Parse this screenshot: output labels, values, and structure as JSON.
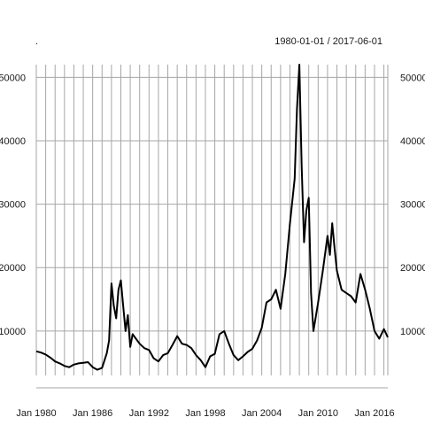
{
  "chart_data": {
    "type": "line",
    "title_left": ".",
    "title_right": "1980-01-01 / 2017-06-01",
    "x_range": [
      "1980-01-01",
      "2017-06-01"
    ],
    "ylim": [
      3000,
      52000
    ],
    "y_ticks": [
      10000,
      20000,
      30000,
      40000,
      50000
    ],
    "y_tick_labels_left": [
      "10000",
      "20000",
      "30000",
      "40000",
      "50000"
    ],
    "y_tick_labels_right": [
      "10000",
      "20000",
      "30000",
      "40000",
      "50000"
    ],
    "x_ticks": [
      "1980-01-01",
      "1986-01-01",
      "1992-01-01",
      "1998-01-01",
      "2004-01-01",
      "2010-01-01",
      "2016-01-01"
    ],
    "x_tick_labels": [
      "Jan 1980",
      "Jan 1986",
      "Jan 1992",
      "Jan 1998",
      "Jan 2004",
      "Jan 2010",
      "Jan 2016"
    ],
    "grid": true,
    "series": [
      {
        "color": "#000000",
        "x": [
          "1980-01-01",
          "1980-07-01",
          "1981-01-01",
          "1981-07-01",
          "1982-01-01",
          "1982-07-01",
          "1983-01-01",
          "1983-07-01",
          "1984-01-01",
          "1984-07-01",
          "1985-01-01",
          "1985-07-01",
          "1986-01-01",
          "1986-07-01",
          "1987-01-01",
          "1987-07-01",
          "1987-10-01",
          "1988-01-01",
          "1988-04-01",
          "1988-07-01",
          "1988-10-01",
          "1989-01-01",
          "1989-04-01",
          "1989-07-01",
          "1989-10-01",
          "1990-01-01",
          "1990-04-01",
          "1990-07-01",
          "1991-01-01",
          "1991-07-01",
          "1992-01-01",
          "1992-07-01",
          "1993-01-01",
          "1993-07-01",
          "1994-01-01",
          "1994-07-01",
          "1995-01-01",
          "1995-07-01",
          "1996-01-01",
          "1996-07-01",
          "1997-01-01",
          "1997-07-01",
          "1998-01-01",
          "1998-07-01",
          "1999-01-01",
          "1999-07-01",
          "2000-01-01",
          "2000-07-01",
          "2001-01-01",
          "2001-07-01",
          "2002-01-01",
          "2002-07-01",
          "2003-01-01",
          "2003-07-01",
          "2004-01-01",
          "2004-07-01",
          "2005-01-01",
          "2005-07-01",
          "2006-01-01",
          "2006-07-01",
          "2007-01-01",
          "2007-07-01",
          "2007-10-01",
          "2008-01-01",
          "2008-04-01",
          "2008-07-01",
          "2008-10-01",
          "2009-01-01",
          "2009-04-01",
          "2009-07-01",
          "2010-01-01",
          "2010-07-01",
          "2011-01-01",
          "2011-04-01",
          "2011-07-01",
          "2011-10-01",
          "2012-01-01",
          "2012-07-01",
          "2013-01-01",
          "2013-07-01",
          "2014-01-01",
          "2014-07-01",
          "2015-01-01",
          "2015-07-01",
          "2016-01-01",
          "2016-07-01",
          "2017-01-01",
          "2017-06-01"
        ],
        "y": [
          6800,
          6600,
          6300,
          5800,
          5200,
          4900,
          4500,
          4300,
          4700,
          4900,
          5000,
          5100,
          4300,
          3900,
          4200,
          6500,
          8500,
          17500,
          14000,
          12000,
          16500,
          18000,
          14000,
          10000,
          12500,
          7500,
          9500,
          9000,
          8000,
          7300,
          7000,
          5700,
          5200,
          6200,
          6500,
          7800,
          9200,
          8000,
          7800,
          7300,
          6200,
          5400,
          4300,
          6000,
          6400,
          9500,
          10000,
          8000,
          6200,
          5400,
          6000,
          6700,
          7200,
          8500,
          10500,
          14500,
          15000,
          16500,
          13500,
          19000,
          27000,
          34000,
          45000,
          52000,
          36000,
          24000,
          29000,
          31000,
          16000,
          10000,
          14500,
          19500,
          25000,
          22000,
          27000,
          23000,
          19500,
          16500,
          16000,
          15500,
          14500,
          19000,
          16500,
          13500,
          10000,
          8800,
          10300,
          9000
        ]
      }
    ]
  }
}
